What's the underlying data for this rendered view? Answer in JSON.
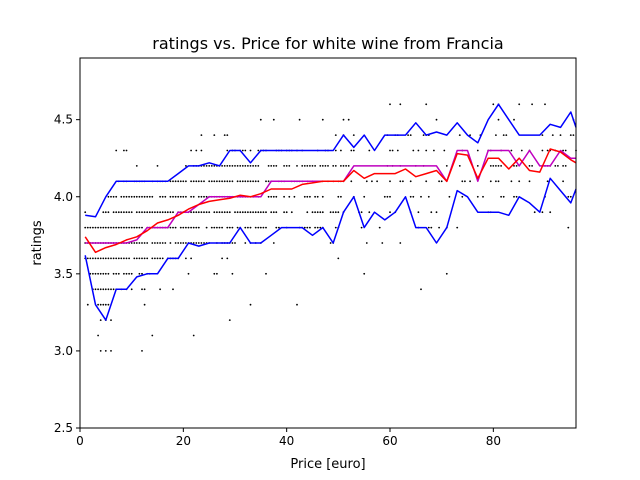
{
  "chart_data": {
    "type": "scatter",
    "title": "ratings vs. Price for white wine from Francia",
    "xlabel": "Price [euro]",
    "ylabel": "ratings",
    "xlim": [
      0,
      96
    ],
    "ylim": [
      2.5,
      4.9
    ],
    "xticks": [
      0,
      20,
      40,
      60,
      80
    ],
    "xtick_labels": [
      "0",
      "20",
      "40",
      "60",
      "80"
    ],
    "yticks": [
      2.5,
      3.0,
      3.5,
      4.0,
      4.5
    ],
    "ytick_labels": [
      "2.5",
      "3.0",
      "3.5",
      "4.0",
      "4.5"
    ],
    "grid": false,
    "points": {
      "color": "#000000",
      "x_range": [
        1,
        96
      ],
      "y_levels": [
        3.0,
        3.1,
        3.2,
        3.3,
        3.4,
        3.5,
        3.6,
        3.7,
        3.8,
        3.9,
        4.0,
        4.1,
        4.2,
        4.3,
        4.4,
        4.5,
        4.6
      ],
      "outliers": [
        [
          22,
          3.1
        ],
        [
          29,
          3.2
        ],
        [
          33,
          3.3
        ],
        [
          42,
          3.3
        ],
        [
          55,
          3.5
        ],
        [
          71,
          3.5
        ],
        [
          66,
          3.4
        ],
        [
          5,
          3.0
        ],
        [
          6,
          3.0
        ],
        [
          12,
          3.0
        ],
        [
          14,
          3.1
        ],
        [
          60,
          4.6
        ],
        [
          67,
          4.6
        ],
        [
          80,
          4.6
        ]
      ]
    },
    "series": [
      {
        "color": "#0000ff",
        "x": [
          1,
          3,
          5,
          7,
          9,
          11,
          13,
          15,
          17,
          19,
          21,
          23,
          25,
          27,
          29,
          31,
          33,
          35,
          37,
          39,
          41,
          43,
          45,
          47,
          49,
          51,
          53,
          55,
          57,
          59,
          61,
          63,
          65,
          67,
          69,
          71,
          73,
          75,
          77,
          79,
          81,
          83,
          85,
          87,
          89,
          91,
          93,
          95,
          96
        ],
        "y": [
          3.88,
          3.87,
          4.0,
          4.1,
          4.1,
          4.1,
          4.1,
          4.1,
          4.1,
          4.15,
          4.2,
          4.2,
          4.22,
          4.2,
          4.3,
          4.3,
          4.22,
          4.3,
          4.3,
          4.3,
          4.3,
          4.3,
          4.3,
          4.3,
          4.3,
          4.4,
          4.32,
          4.4,
          4.3,
          4.4,
          4.4,
          4.4,
          4.48,
          4.4,
          4.42,
          4.4,
          4.48,
          4.4,
          4.35,
          4.5,
          4.6,
          4.5,
          4.4,
          4.4,
          4.4,
          4.47,
          4.45,
          4.55,
          4.45
        ]
      },
      {
        "color": "#0000ff",
        "x": [
          1,
          3,
          5,
          7,
          9,
          11,
          13,
          15,
          17,
          19,
          21,
          23,
          25,
          27,
          29,
          31,
          33,
          35,
          37,
          39,
          41,
          43,
          45,
          47,
          49,
          51,
          53,
          55,
          57,
          59,
          61,
          63,
          65,
          67,
          69,
          71,
          73,
          75,
          77,
          79,
          81,
          83,
          85,
          87,
          89,
          91,
          93,
          95,
          96
        ],
        "y": [
          3.62,
          3.3,
          3.2,
          3.4,
          3.4,
          3.48,
          3.5,
          3.5,
          3.6,
          3.6,
          3.7,
          3.68,
          3.7,
          3.7,
          3.7,
          3.8,
          3.7,
          3.7,
          3.75,
          3.8,
          3.8,
          3.8,
          3.75,
          3.8,
          3.7,
          3.9,
          4.0,
          3.8,
          3.9,
          3.85,
          3.9,
          4.0,
          3.8,
          3.8,
          3.7,
          3.8,
          4.04,
          4.0,
          3.9,
          3.9,
          3.9,
          3.88,
          4.0,
          3.96,
          3.9,
          4.12,
          4.04,
          3.96,
          4.05
        ]
      },
      {
        "color": "#bf00bf",
        "x": [
          1,
          3,
          5,
          7,
          9,
          11,
          13,
          15,
          17,
          19,
          21,
          23,
          25,
          27,
          29,
          31,
          33,
          35,
          37,
          39,
          41,
          43,
          45,
          47,
          49,
          51,
          53,
          55,
          57,
          59,
          61,
          63,
          65,
          67,
          69,
          71,
          73,
          75,
          77,
          79,
          81,
          83,
          85,
          87,
          89,
          91,
          93,
          95,
          96
        ],
        "y": [
          3.7,
          3.7,
          3.7,
          3.7,
          3.7,
          3.72,
          3.8,
          3.8,
          3.8,
          3.9,
          3.9,
          3.95,
          4.0,
          4.0,
          4.0,
          4.0,
          4.0,
          4.0,
          4.1,
          4.1,
          4.1,
          4.1,
          4.1,
          4.1,
          4.1,
          4.1,
          4.2,
          4.2,
          4.2,
          4.2,
          4.2,
          4.2,
          4.2,
          4.2,
          4.2,
          4.1,
          4.3,
          4.3,
          4.1,
          4.3,
          4.3,
          4.3,
          4.2,
          4.3,
          4.2,
          4.2,
          4.3,
          4.25,
          4.25
        ]
      },
      {
        "color": "#ff0000",
        "x": [
          1,
          3,
          5,
          7,
          9,
          11,
          13,
          15,
          17,
          19,
          21,
          23,
          25,
          27,
          29,
          31,
          33,
          35,
          37,
          39,
          41,
          43,
          45,
          47,
          49,
          51,
          53,
          55,
          57,
          59,
          61,
          63,
          65,
          67,
          69,
          71,
          73,
          75,
          77,
          79,
          81,
          83,
          85,
          87,
          89,
          91,
          93,
          95,
          96
        ],
        "y": [
          3.74,
          3.64,
          3.67,
          3.69,
          3.72,
          3.74,
          3.78,
          3.83,
          3.85,
          3.88,
          3.92,
          3.95,
          3.97,
          3.98,
          3.99,
          4.01,
          4.0,
          4.02,
          4.05,
          4.05,
          4.05,
          4.08,
          4.09,
          4.1,
          4.1,
          4.1,
          4.17,
          4.12,
          4.15,
          4.15,
          4.15,
          4.18,
          4.13,
          4.15,
          4.17,
          4.1,
          4.28,
          4.27,
          4.12,
          4.25,
          4.25,
          4.18,
          4.25,
          4.17,
          4.16,
          4.31,
          4.29,
          4.24,
          4.22
        ]
      }
    ]
  }
}
